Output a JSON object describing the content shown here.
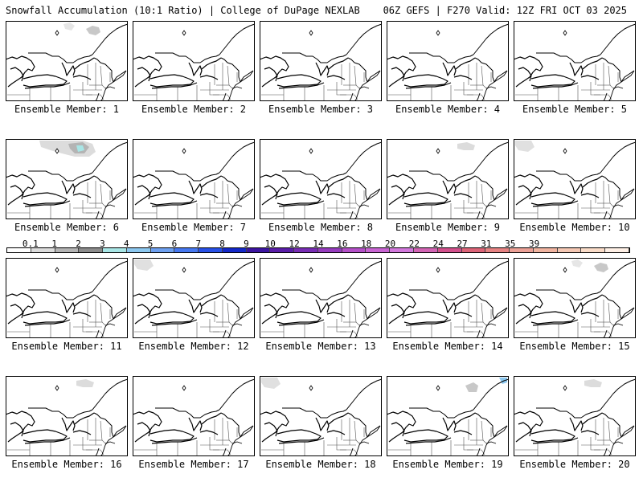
{
  "header": {
    "left": "Snowfall Accumulation (10:1 Ratio) | College of DuPage NEXLAB",
    "right": "06Z GEFS | F270 Valid: 12Z FRI OCT 03 2025"
  },
  "members": [
    {
      "label": "Ensemble Member: 1",
      "snow": "patch-ne"
    },
    {
      "label": "Ensemble Member: 2",
      "snow": "none"
    },
    {
      "label": "Ensemble Member: 3",
      "snow": "none"
    },
    {
      "label": "Ensemble Member: 4",
      "snow": "none"
    },
    {
      "label": "Ensemble Member: 5",
      "snow": "none"
    },
    {
      "label": "Ensemble Member: 6",
      "snow": "heavy-north"
    },
    {
      "label": "Ensemble Member: 7",
      "snow": "none"
    },
    {
      "label": "Ensemble Member: 8",
      "snow": "none"
    },
    {
      "label": "Ensemble Member: 9",
      "snow": "patch-north"
    },
    {
      "label": "Ensemble Member: 10",
      "snow": "patch-nw"
    },
    {
      "label": "Ensemble Member: 11",
      "snow": "none"
    },
    {
      "label": "Ensemble Member: 12",
      "snow": "patch-nw"
    },
    {
      "label": "Ensemble Member: 13",
      "snow": "none"
    },
    {
      "label": "Ensemble Member: 14",
      "snow": "none"
    },
    {
      "label": "Ensemble Member: 15",
      "snow": "patch-ne"
    },
    {
      "label": "Ensemble Member: 16",
      "snow": "patch-north"
    },
    {
      "label": "Ensemble Member: 17",
      "snow": "none"
    },
    {
      "label": "Ensemble Member: 18",
      "snow": "patch-nw"
    },
    {
      "label": "Ensemble Member: 19",
      "snow": "patch-ne-blue"
    },
    {
      "label": "Ensemble Member: 20",
      "snow": "patch-north"
    }
  ],
  "colorbar": {
    "labels": [
      "0.1",
      "1",
      "2",
      "3",
      "4",
      "5",
      "6",
      "7",
      "8",
      "9",
      "10",
      "12",
      "14",
      "16",
      "18",
      "20",
      "22",
      "24",
      "27",
      "31",
      "35",
      "39"
    ],
    "colors": [
      "#ffffff",
      "#dcdcdc",
      "#b4b4b4",
      "#8c8c8c",
      "#a8e6e6",
      "#8cc8f0",
      "#6ea0f0",
      "#4678f0",
      "#2850e6",
      "#1428c8",
      "#3c14a0",
      "#5a1ea8",
      "#782db4",
      "#963cbe",
      "#b450c8",
      "#c864d2",
      "#d278dc",
      "#d264b4",
      "#d2508c",
      "#dc6478",
      "#e68282",
      "#eba096",
      "#f0b4a0",
      "#f5c8b4",
      "#fadcc8",
      "#fff0e6"
    ]
  }
}
